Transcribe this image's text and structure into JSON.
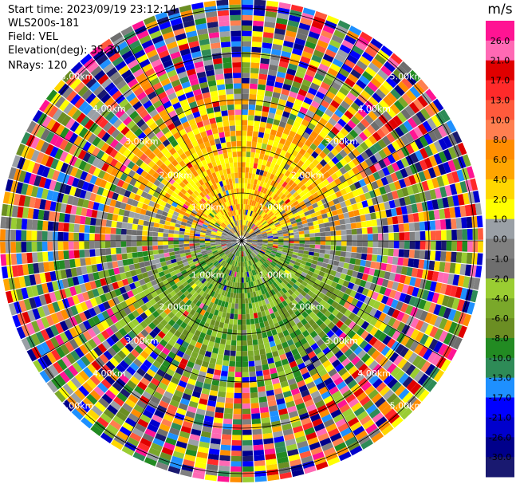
{
  "header": {
    "start_time": "Start time: 2023/09/19 23:12:14",
    "instrument": "WLS200s-181",
    "field": "Field: VEL",
    "elevation": "Elevation(deg): 35.30",
    "nrays": "NRays: 120"
  },
  "chart_data": {
    "type": "ppi",
    "field": "VEL",
    "elevation_deg": 35.3,
    "n_rays": 120,
    "range_rings_km": [
      1.0,
      2.0,
      3.0,
      4.0,
      5.0
    ],
    "range_ring_labels": [
      "1.00km",
      "2.00km",
      "3.00km",
      "4.00km",
      "5.00km"
    ],
    "colorbar": {
      "unit": "m/s",
      "tick_labels": [
        "26.0",
        "21.0",
        "17.0",
        "13.0",
        "10.0",
        "8.0",
        "6.0",
        "4.0",
        "2.0",
        "1.0",
        "0.0",
        "-1.0",
        "-2.0",
        "-4.0",
        "-6.0",
        "-8.0",
        "-10.0",
        "-13.0",
        "-17.0",
        "-21.0",
        "-26.0",
        "-30.0"
      ],
      "colors": [
        "#ff1493",
        "#ff69b4",
        "#e00000",
        "#ff2a2a",
        "#ff5a3c",
        "#ff7f50",
        "#ff8c00",
        "#ffa500",
        "#ffd700",
        "#ffff00",
        "#9aa0a6",
        "#808080",
        "#6e6e6e",
        "#9acd32",
        "#7aa82a",
        "#6b8e23",
        "#228b22",
        "#2e8b57",
        "#1e90ff",
        "#0000ff",
        "#0000cd",
        "#00008b",
        "#191970"
      ]
    }
  }
}
